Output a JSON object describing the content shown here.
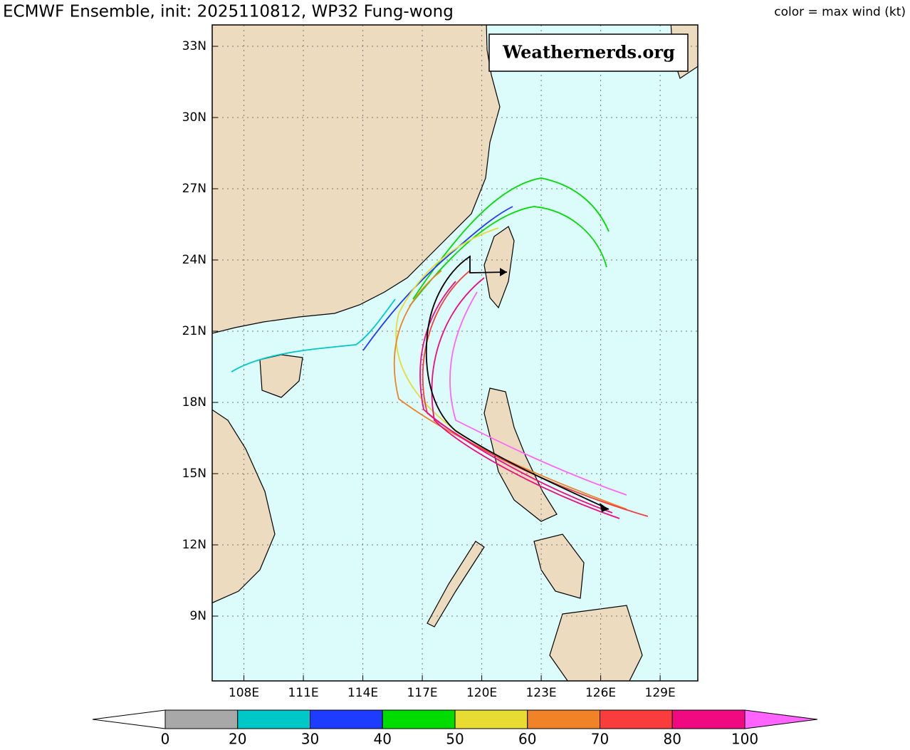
{
  "header": {
    "title": "ECMWF Ensemble, init: 2025110812, WP32 Fung-wong",
    "color_note": "color = max wind (kt)"
  },
  "watermark": "Weathernerds.org",
  "map": {
    "xlim": [
      106.4,
      130.9
    ],
    "ylim": [
      6.27,
      33.9
    ],
    "xticks": [
      {
        "value": 108,
        "label": "108E"
      },
      {
        "value": 111,
        "label": "111E"
      },
      {
        "value": 114,
        "label": "114E"
      },
      {
        "value": 117,
        "label": "117E"
      },
      {
        "value": 120,
        "label": "120E"
      },
      {
        "value": 123,
        "label": "123E"
      },
      {
        "value": 126,
        "label": "126E"
      },
      {
        "value": 129,
        "label": "129E"
      }
    ],
    "yticks": [
      {
        "value": 9,
        "label": "9N"
      },
      {
        "value": 12,
        "label": "12N"
      },
      {
        "value": 15,
        "label": "15N"
      },
      {
        "value": 18,
        "label": "18N"
      },
      {
        "value": 21,
        "label": "21N"
      },
      {
        "value": 24,
        "label": "24N"
      },
      {
        "value": 27,
        "label": "27N"
      },
      {
        "value": 30,
        "label": "30N"
      },
      {
        "value": 33,
        "label": "33N"
      }
    ]
  },
  "colorbar": {
    "levels": [
      0,
      20,
      30,
      40,
      50,
      60,
      70,
      80,
      100
    ],
    "colors": [
      "#a8a8a8",
      "#00c8c8",
      "#1e3cff",
      "#00dc00",
      "#e6dc32",
      "#f08228",
      "#fa3c3c",
      "#f00a82"
    ],
    "extend_color": "#ff64ff"
  }
}
